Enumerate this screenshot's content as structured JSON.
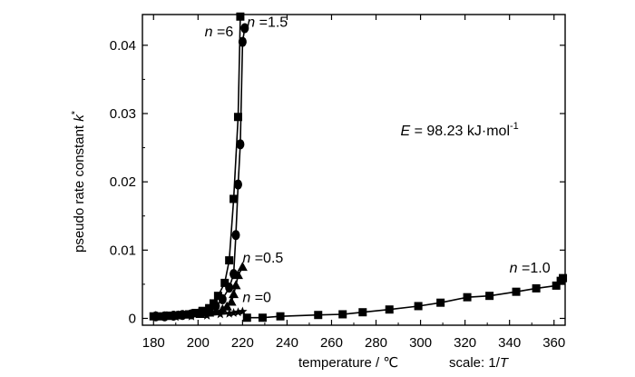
{
  "chart_data": {
    "type": "line",
    "title": "",
    "xlabel": "temperature / ℃",
    "ylabel_main": "pseudo rate constant ",
    "ylabel_italic": "k",
    "ylabel_sup": "*",
    "scale_note_prefix": "scale: 1/",
    "scale_note_var": "T",
    "xlim": [
      175,
      365
    ],
    "ylim": [
      -0.001,
      0.0445
    ],
    "xticks": [
      180,
      200,
      220,
      240,
      260,
      280,
      300,
      320,
      340,
      360
    ],
    "xtick_labels": [
      "180",
      "200",
      "220",
      "240",
      "260",
      "280",
      "300",
      "320",
      "340",
      "360"
    ],
    "yticks": [
      0,
      0.01,
      0.02,
      0.03,
      0.04
    ],
    "ytick_labels": [
      "0",
      "0.01",
      "0.02",
      "0.03",
      "0.04"
    ],
    "grid": false,
    "legend": "none",
    "series": [
      {
        "marker": "square",
        "x": [
          180,
          183,
          186,
          189,
          192,
          196,
          199,
          202,
          205,
          207,
          209,
          212,
          214,
          216,
          218,
          219
        ],
        "y": [
          0.0003,
          0.0003,
          0.0004,
          0.0004,
          0.0005,
          0.0006,
          0.0008,
          0.0011,
          0.0015,
          0.0022,
          0.0033,
          0.0052,
          0.0085,
          0.0175,
          0.0295,
          0.0442
        ]
      },
      {
        "marker": "circle",
        "x": [
          181,
          185,
          189,
          193,
          197,
          201,
          205,
          208,
          211,
          214,
          216,
          217,
          218,
          219,
          220,
          221
        ],
        "y": [
          0.0003,
          0.0003,
          0.0004,
          0.0005,
          0.0006,
          0.0008,
          0.0012,
          0.0018,
          0.0028,
          0.0045,
          0.0065,
          0.0122,
          0.0196,
          0.0255,
          0.0405,
          0.0425
        ]
      },
      {
        "marker": "triangle",
        "x": [
          181,
          186,
          191,
          196,
          201,
          205,
          208,
          211,
          213,
          215,
          216,
          217,
          218,
          220
        ],
        "y": [
          0.0003,
          0.0003,
          0.0004,
          0.0005,
          0.0006,
          0.0008,
          0.001,
          0.0013,
          0.0017,
          0.0024,
          0.0035,
          0.0048,
          0.0063,
          0.0075
        ]
      },
      {
        "marker": "star",
        "x": [
          183,
          190,
          197,
          204,
          210,
          214,
          216,
          218,
          220
        ],
        "y": [
          0.0002,
          0.0002,
          0.0003,
          0.0004,
          0.0006,
          0.0007,
          0.0008,
          0.0009,
          0.001
        ]
      },
      {
        "marker": "square",
        "x": [
          222,
          229,
          237,
          254,
          265,
          274,
          286,
          299,
          309,
          321,
          331,
          343,
          352,
          361,
          363,
          364
        ],
        "y": [
          0.0001,
          0.0001,
          0.0003,
          0.0005,
          0.0006,
          0.0009,
          0.0013,
          0.0018,
          0.0023,
          0.0031,
          0.0033,
          0.0039,
          0.0044,
          0.0048,
          0.0055,
          0.0059
        ]
      }
    ],
    "annotations": [
      {
        "prefix": "n",
        "text": " =6",
        "x": 203,
        "y": 0.0413
      },
      {
        "prefix": "n",
        "text": " =1.5",
        "x": 222,
        "y": 0.0427
      },
      {
        "prefix": "n",
        "text": " =0.5",
        "x": 220,
        "y": 0.0082
      },
      {
        "prefix": "n",
        "text": " =0",
        "x": 220,
        "y": 0.0024
      },
      {
        "prefix": "n",
        "text": " =1.0",
        "x": 340,
        "y": 0.0067
      }
    ],
    "equation": {
      "prefix": "E",
      "text": " = 98.23 kJ·mol",
      "sup": "-1",
      "x": 291,
      "y": 0.0268
    }
  }
}
